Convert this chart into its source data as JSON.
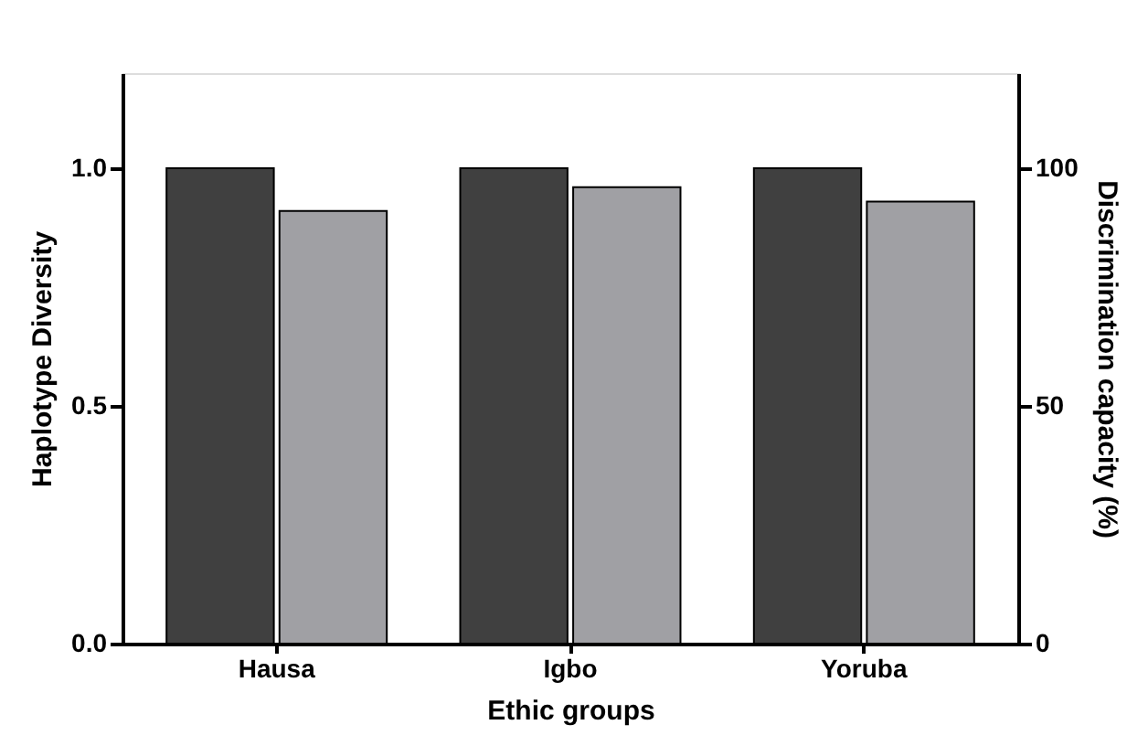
{
  "chart_data": {
    "type": "bar",
    "xlabel": "Ethic groups",
    "ylabel": "Haplotype Diversity",
    "y2label": "Discrimination capacity (%)",
    "categories": [
      "Hausa",
      "Igbo",
      "Yoruba"
    ],
    "series": [
      {
        "color": "#404040",
        "values": [
          1.0,
          1.0,
          1.0
        ]
      },
      {
        "color": "#a0a0a4",
        "values": [
          91,
          96,
          93
        ],
        "axis": "y2"
      }
    ],
    "ylim": [
      0,
      1.2
    ],
    "yticks": [
      {
        "value": 0,
        "label": "0.0"
      },
      {
        "value": 0.5,
        "label": "0.5"
      },
      {
        "value": 1,
        "label": "1.0"
      }
    ],
    "y2lim": [
      0,
      120
    ],
    "y2ticks": [
      0,
      50,
      100
    ],
    "grid": false
  }
}
